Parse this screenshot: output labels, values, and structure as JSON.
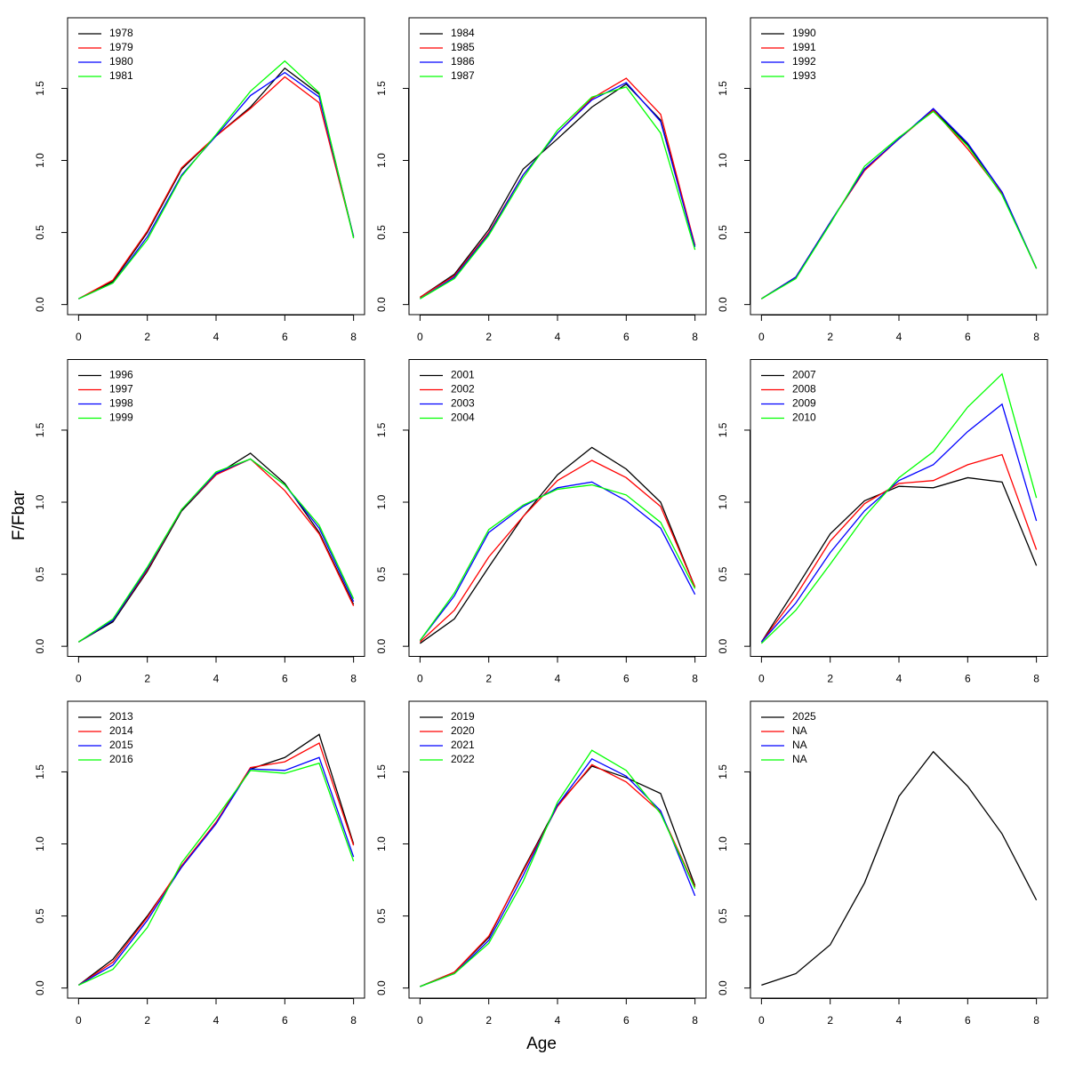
{
  "xlabel": "Age",
  "ylabel": "F/Fbar",
  "chart_data": [
    {
      "type": "line",
      "legend": "topleft",
      "x": [
        0,
        1,
        2,
        3,
        4,
        5,
        6,
        7,
        8
      ],
      "xlim": [
        -0.32,
        8.32
      ],
      "ylim": [
        -0.07,
        1.99
      ],
      "xticks": [
        0,
        2,
        4,
        6,
        8
      ],
      "yticks": [
        {
          "value": 0,
          "label": "0.0"
        },
        {
          "value": 0.5,
          "label": "0.5"
        },
        {
          "value": 1,
          "label": "1.0"
        },
        {
          "value": 1.5,
          "label": "1.5"
        }
      ],
      "series": [
        {
          "name": "1978",
          "color": "#000000",
          "values": [
            0.04,
            0.16,
            0.5,
            0.94,
            1.17,
            1.37,
            1.64,
            1.46,
            0.47
          ]
        },
        {
          "name": "1979",
          "color": "#ff0000",
          "values": [
            0.04,
            0.17,
            0.51,
            0.95,
            1.17,
            1.36,
            1.58,
            1.4,
            0.47
          ]
        },
        {
          "name": "1980",
          "color": "#0000ff",
          "values": [
            0.04,
            0.15,
            0.47,
            0.9,
            1.17,
            1.45,
            1.61,
            1.44,
            0.47
          ]
        },
        {
          "name": "1981",
          "color": "#00ff00",
          "values": [
            0.04,
            0.15,
            0.45,
            0.89,
            1.18,
            1.48,
            1.69,
            1.47,
            0.46
          ]
        }
      ]
    },
    {
      "type": "line",
      "legend": "topleft",
      "x": [
        0,
        1,
        2,
        3,
        4,
        5,
        6,
        7,
        8
      ],
      "xlim": [
        -0.32,
        8.32
      ],
      "ylim": [
        -0.07,
        1.99
      ],
      "xticks": [
        0,
        2,
        4,
        6,
        8
      ],
      "yticks": [
        {
          "value": 0,
          "label": "0.0"
        },
        {
          "value": 0.5,
          "label": "0.5"
        },
        {
          "value": 1,
          "label": "1.0"
        },
        {
          "value": 1.5,
          "label": "1.5"
        }
      ],
      "series": [
        {
          "name": "1984",
          "color": "#000000",
          "values": [
            0.05,
            0.21,
            0.52,
            0.94,
            1.15,
            1.37,
            1.53,
            1.28,
            0.41
          ]
        },
        {
          "name": "1985",
          "color": "#ff0000",
          "values": [
            0.05,
            0.2,
            0.5,
            0.9,
            1.19,
            1.43,
            1.57,
            1.32,
            0.41
          ]
        },
        {
          "name": "1986",
          "color": "#0000ff",
          "values": [
            0.04,
            0.19,
            0.49,
            0.9,
            1.19,
            1.42,
            1.54,
            1.27,
            0.4
          ]
        },
        {
          "name": "1987",
          "color": "#00ff00",
          "values": [
            0.04,
            0.18,
            0.48,
            0.88,
            1.21,
            1.44,
            1.51,
            1.19,
            0.38
          ]
        }
      ]
    },
    {
      "type": "line",
      "legend": "topleft",
      "x": [
        0,
        1,
        2,
        3,
        4,
        5,
        6,
        7,
        8
      ],
      "xlim": [
        -0.32,
        8.32
      ],
      "ylim": [
        -0.07,
        1.99
      ],
      "xticks": [
        0,
        2,
        4,
        6,
        8
      ],
      "yticks": [
        {
          "value": 0,
          "label": "0.0"
        },
        {
          "value": 0.5,
          "label": "0.5"
        },
        {
          "value": 1,
          "label": "1.0"
        },
        {
          "value": 1.5,
          "label": "1.5"
        }
      ],
      "series": [
        {
          "name": "1990",
          "color": "#000000",
          "values": [
            0.04,
            0.19,
            0.57,
            0.94,
            1.15,
            1.35,
            1.11,
            0.78,
            0.25
          ]
        },
        {
          "name": "1991",
          "color": "#ff0000",
          "values": [
            0.04,
            0.19,
            0.57,
            0.93,
            1.15,
            1.35,
            1.08,
            0.77,
            0.25
          ]
        },
        {
          "name": "1992",
          "color": "#0000ff",
          "values": [
            0.04,
            0.19,
            0.57,
            0.94,
            1.15,
            1.36,
            1.12,
            0.78,
            0.25
          ]
        },
        {
          "name": "1993",
          "color": "#00ff00",
          "values": [
            0.04,
            0.18,
            0.56,
            0.96,
            1.16,
            1.34,
            1.1,
            0.76,
            0.25
          ]
        }
      ]
    },
    {
      "type": "line",
      "legend": "topleft",
      "x": [
        0,
        1,
        2,
        3,
        4,
        5,
        6,
        7,
        8
      ],
      "xlim": [
        -0.32,
        8.32
      ],
      "ylim": [
        -0.07,
        1.99
      ],
      "xticks": [
        0,
        2,
        4,
        6,
        8
      ],
      "yticks": [
        {
          "value": 0,
          "label": "0.0"
        },
        {
          "value": 0.5,
          "label": "0.5"
        },
        {
          "value": 1,
          "label": "1.0"
        },
        {
          "value": 1.5,
          "label": "1.5"
        }
      ],
      "series": [
        {
          "name": "1996",
          "color": "#000000",
          "values": [
            0.03,
            0.17,
            0.52,
            0.94,
            1.19,
            1.34,
            1.13,
            0.79,
            0.29
          ]
        },
        {
          "name": "1997",
          "color": "#ff0000",
          "values": [
            0.03,
            0.18,
            0.53,
            0.95,
            1.19,
            1.3,
            1.08,
            0.78,
            0.28
          ]
        },
        {
          "name": "1998",
          "color": "#0000ff",
          "values": [
            0.03,
            0.18,
            0.54,
            0.95,
            1.2,
            1.3,
            1.12,
            0.82,
            0.31
          ]
        },
        {
          "name": "1999",
          "color": "#00ff00",
          "values": [
            0.03,
            0.19,
            0.55,
            0.95,
            1.21,
            1.3,
            1.12,
            0.84,
            0.33
          ]
        }
      ]
    },
    {
      "type": "line",
      "legend": "topleft",
      "x": [
        0,
        1,
        2,
        3,
        4,
        5,
        6,
        7,
        8
      ],
      "xlim": [
        -0.32,
        8.32
      ],
      "ylim": [
        -0.07,
        1.99
      ],
      "xticks": [
        0,
        2,
        4,
        6,
        8
      ],
      "yticks": [
        {
          "value": 0,
          "label": "0.0"
        },
        {
          "value": 0.5,
          "label": "0.5"
        },
        {
          "value": 1,
          "label": "1.0"
        },
        {
          "value": 1.5,
          "label": "1.5"
        }
      ],
      "series": [
        {
          "name": "2001",
          "color": "#000000",
          "values": [
            0.02,
            0.19,
            0.55,
            0.9,
            1.19,
            1.38,
            1.23,
            1.0,
            0.41
          ]
        },
        {
          "name": "2002",
          "color": "#ff0000",
          "values": [
            0.03,
            0.25,
            0.62,
            0.9,
            1.15,
            1.29,
            1.17,
            0.97,
            0.41
          ]
        },
        {
          "name": "2003",
          "color": "#0000ff",
          "values": [
            0.04,
            0.35,
            0.79,
            0.97,
            1.1,
            1.14,
            1.01,
            0.82,
            0.36
          ]
        },
        {
          "name": "2004",
          "color": "#00ff00",
          "values": [
            0.04,
            0.37,
            0.81,
            0.98,
            1.09,
            1.12,
            1.05,
            0.86,
            0.4
          ]
        }
      ]
    },
    {
      "type": "line",
      "legend": "topleft",
      "x": [
        0,
        1,
        2,
        3,
        4,
        5,
        6,
        7,
        8
      ],
      "xlim": [
        -0.32,
        8.32
      ],
      "ylim": [
        -0.07,
        1.99
      ],
      "xticks": [
        0,
        2,
        4,
        6,
        8
      ],
      "yticks": [
        {
          "value": 0,
          "label": "0.0"
        },
        {
          "value": 0.5,
          "label": "0.5"
        },
        {
          "value": 1,
          "label": "1.0"
        },
        {
          "value": 1.5,
          "label": "1.5"
        }
      ],
      "series": [
        {
          "name": "2007",
          "color": "#000000",
          "values": [
            0.03,
            0.4,
            0.78,
            1.01,
            1.11,
            1.1,
            1.17,
            1.14,
            0.56
          ]
        },
        {
          "name": "2008",
          "color": "#ff0000",
          "values": [
            0.03,
            0.35,
            0.73,
            0.99,
            1.13,
            1.15,
            1.26,
            1.33,
            0.67
          ]
        },
        {
          "name": "2009",
          "color": "#0000ff",
          "values": [
            0.03,
            0.3,
            0.65,
            0.94,
            1.15,
            1.26,
            1.49,
            1.68,
            0.87
          ]
        },
        {
          "name": "2010",
          "color": "#00ff00",
          "values": [
            0.02,
            0.25,
            0.57,
            0.9,
            1.17,
            1.35,
            1.66,
            1.89,
            1.03
          ]
        }
      ]
    },
    {
      "type": "line",
      "legend": "topleft",
      "x": [
        0,
        1,
        2,
        3,
        4,
        5,
        6,
        7,
        8
      ],
      "xlim": [
        -0.32,
        8.32
      ],
      "ylim": [
        -0.07,
        1.99
      ],
      "xticks": [
        0,
        2,
        4,
        6,
        8
      ],
      "yticks": [
        {
          "value": 0,
          "label": "0.0"
        },
        {
          "value": 0.5,
          "label": "0.5"
        },
        {
          "value": 1,
          "label": "1.0"
        },
        {
          "value": 1.5,
          "label": "1.5"
        }
      ],
      "series": [
        {
          "name": "2013",
          "color": "#000000",
          "values": [
            0.02,
            0.2,
            0.5,
            0.84,
            1.15,
            1.52,
            1.6,
            1.76,
            1.0
          ]
        },
        {
          "name": "2014",
          "color": "#ff0000",
          "values": [
            0.02,
            0.18,
            0.49,
            0.85,
            1.15,
            1.53,
            1.57,
            1.7,
            0.99
          ]
        },
        {
          "name": "2015",
          "color": "#0000ff",
          "values": [
            0.02,
            0.16,
            0.47,
            0.84,
            1.14,
            1.52,
            1.51,
            1.6,
            0.91
          ]
        },
        {
          "name": "2016",
          "color": "#00ff00",
          "values": [
            0.02,
            0.13,
            0.42,
            0.87,
            1.18,
            1.51,
            1.49,
            1.56,
            0.88
          ]
        }
      ]
    },
    {
      "type": "line",
      "legend": "topleft",
      "x": [
        0,
        1,
        2,
        3,
        4,
        5,
        6,
        7,
        8
      ],
      "xlim": [
        -0.32,
        8.32
      ],
      "ylim": [
        -0.07,
        1.99
      ],
      "xticks": [
        0,
        2,
        4,
        6,
        8
      ],
      "yticks": [
        {
          "value": 0,
          "label": "0.0"
        },
        {
          "value": 0.5,
          "label": "0.5"
        },
        {
          "value": 1,
          "label": "1.0"
        },
        {
          "value": 1.5,
          "label": "1.5"
        }
      ],
      "series": [
        {
          "name": "2019",
          "color": "#000000",
          "values": [
            0.01,
            0.11,
            0.35,
            0.82,
            1.27,
            1.54,
            1.46,
            1.35,
            0.71
          ]
        },
        {
          "name": "2020",
          "color": "#ff0000",
          "values": [
            0.01,
            0.11,
            0.36,
            0.81,
            1.26,
            1.55,
            1.43,
            1.22,
            0.7
          ]
        },
        {
          "name": "2021",
          "color": "#0000ff",
          "values": [
            0.01,
            0.1,
            0.33,
            0.78,
            1.27,
            1.59,
            1.47,
            1.23,
            0.64
          ]
        },
        {
          "name": "2022",
          "color": "#00ff00",
          "values": [
            0.01,
            0.1,
            0.31,
            0.74,
            1.29,
            1.65,
            1.51,
            1.21,
            0.69
          ]
        }
      ]
    },
    {
      "type": "line",
      "legend": "topleft",
      "x": [
        0,
        1,
        2,
        3,
        4,
        5,
        6,
        7,
        8
      ],
      "xlim": [
        -0.32,
        8.32
      ],
      "ylim": [
        -0.07,
        1.99
      ],
      "xticks": [
        0,
        2,
        4,
        6,
        8
      ],
      "yticks": [
        {
          "value": 0,
          "label": "0.0"
        },
        {
          "value": 0.5,
          "label": "0.5"
        },
        {
          "value": 1,
          "label": "1.0"
        },
        {
          "value": 1.5,
          "label": "1.5"
        }
      ],
      "series": [
        {
          "name": "2025",
          "color": "#000000",
          "values": [
            0.02,
            0.1,
            0.3,
            0.73,
            1.33,
            1.64,
            1.4,
            1.07,
            0.61
          ]
        },
        {
          "name": "NA",
          "color": "#ff0000",
          "values": [
            null,
            null,
            null,
            null,
            null,
            null,
            null,
            null,
            null
          ]
        },
        {
          "name": "NA",
          "color": "#0000ff",
          "values": [
            null,
            null,
            null,
            null,
            null,
            null,
            null,
            null,
            null
          ]
        },
        {
          "name": "NA",
          "color": "#00ff00",
          "values": [
            null,
            null,
            null,
            null,
            null,
            null,
            null,
            null,
            null
          ]
        }
      ]
    }
  ]
}
